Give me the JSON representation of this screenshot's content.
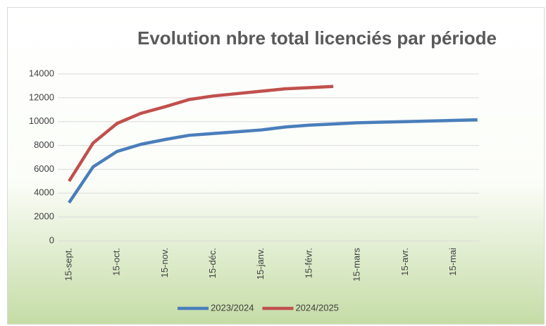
{
  "chart_data": {
    "type": "line",
    "title": "Evolution nbre total licenciés par période",
    "categories": [
      "15-sept.",
      null,
      "15-oct.",
      null,
      "15-nov.",
      null,
      "15-déc.",
      null,
      "15-janv.",
      null,
      "15-févr.",
      null,
      "15-mars",
      null,
      "15-avr.",
      null,
      "15-mai",
      null
    ],
    "series": [
      {
        "name": "2023/2024",
        "color": "#4a7ebb",
        "values": [
          3200,
          6200,
          7500,
          8100,
          8500,
          8850,
          9000,
          9150,
          9300,
          9550,
          9700,
          9800,
          9900,
          9950,
          10000,
          10050,
          10100,
          10150
        ]
      },
      {
        "name": "2024/2025",
        "color": "#c0504d",
        "values": [
          5000,
          8200,
          9850,
          10700,
          11250,
          11850,
          12150,
          12350,
          12550,
          12750,
          12850,
          12950,
          null,
          null,
          null,
          null,
          null,
          null
        ]
      }
    ],
    "ylim": [
      0,
      14000
    ],
    "yticks": [
      0,
      2000,
      4000,
      6000,
      8000,
      10000,
      12000,
      14000
    ],
    "grid": true,
    "legend": "bottom"
  }
}
